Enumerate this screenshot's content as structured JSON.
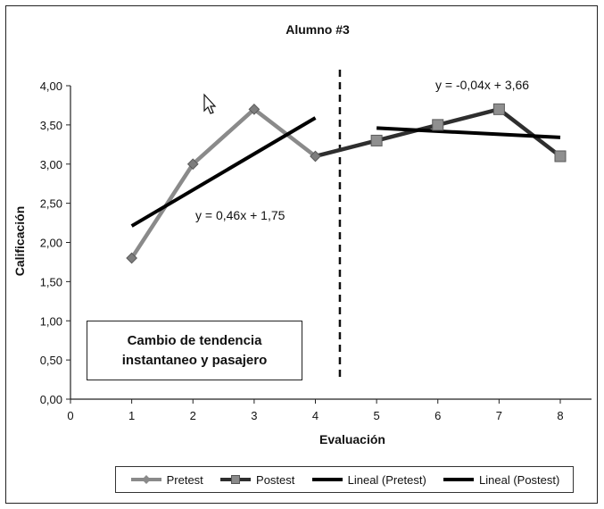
{
  "chart_data": {
    "type": "line",
    "title": "Alumno #3",
    "xlabel": "Evaluación",
    "ylabel": "Calificación",
    "xlim": [
      0,
      8
    ],
    "ylim": [
      0,
      4
    ],
    "xticks": [
      "0",
      "1",
      "2",
      "3",
      "4",
      "5",
      "6",
      "7",
      "8"
    ],
    "yticks": [
      "0,00",
      "0,50",
      "1,00",
      "1,50",
      "2,00",
      "2,50",
      "3,00",
      "3,50",
      "4,00"
    ],
    "grid": false,
    "legend_position": "bottom",
    "series": [
      {
        "name": "Pretest",
        "x": [
          1,
          2,
          3,
          4
        ],
        "y": [
          1.8,
          3.0,
          3.7,
          3.1
        ],
        "color": "#8a8a8a",
        "marker": "diamond"
      },
      {
        "name": "Postest",
        "x": [
          4,
          5,
          6,
          7,
          8
        ],
        "y": [
          3.1,
          3.3,
          3.5,
          3.7,
          3.1
        ],
        "color": "#2e2e2e",
        "marker": "square"
      }
    ],
    "trendlines": [
      {
        "name": "Lineal (Pretest)",
        "equation": "y = 0,46x + 1,75",
        "x": [
          1,
          4
        ],
        "y": [
          2.21,
          3.59
        ],
        "color": "#000000"
      },
      {
        "name": "Lineal (Postest)",
        "equation": "y = -0,04x + 3,66",
        "x": [
          5,
          8
        ],
        "y": [
          3.46,
          3.34
        ],
        "color": "#000000"
      }
    ],
    "phase_line_x": 4.4,
    "annotation": [
      "Cambio de tendencia",
      "instantaneo y pasajero"
    ]
  },
  "legend": {
    "pretest": "Pretest",
    "postest": "Postest",
    "lineal_pretest": "Lineal (Pretest)",
    "lineal_postest": "Lineal (Postest)"
  }
}
